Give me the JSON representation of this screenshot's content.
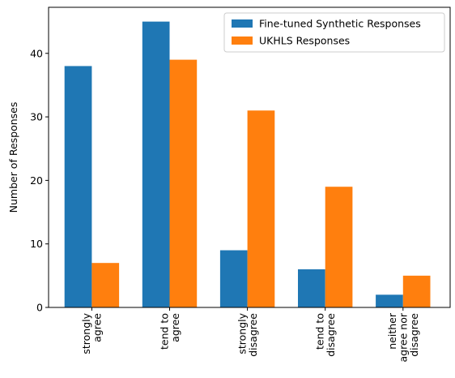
{
  "chart_data": {
    "type": "bar",
    "categories": [
      [
        "strongly",
        "agree"
      ],
      [
        "tend to",
        "agree"
      ],
      [
        "strongly",
        "disagree"
      ],
      [
        "tend to",
        "disagree"
      ],
      [
        "neither",
        "agree nor",
        "disagree"
      ]
    ],
    "series": [
      {
        "name": "Fine-tuned Synthetic Responses",
        "values": [
          38,
          45,
          9,
          6,
          2
        ],
        "color": "#1f77b4"
      },
      {
        "name": "UKHLS Responses",
        "values": [
          7,
          39,
          31,
          19,
          5
        ],
        "color": "#ff7f0e"
      }
    ],
    "xlabel": "",
    "ylabel": "Number of Responses",
    "ylim": [
      0,
      47.25
    ],
    "yticks": [
      0,
      10,
      20,
      30,
      40
    ],
    "grid": false,
    "legend": "top-right"
  }
}
